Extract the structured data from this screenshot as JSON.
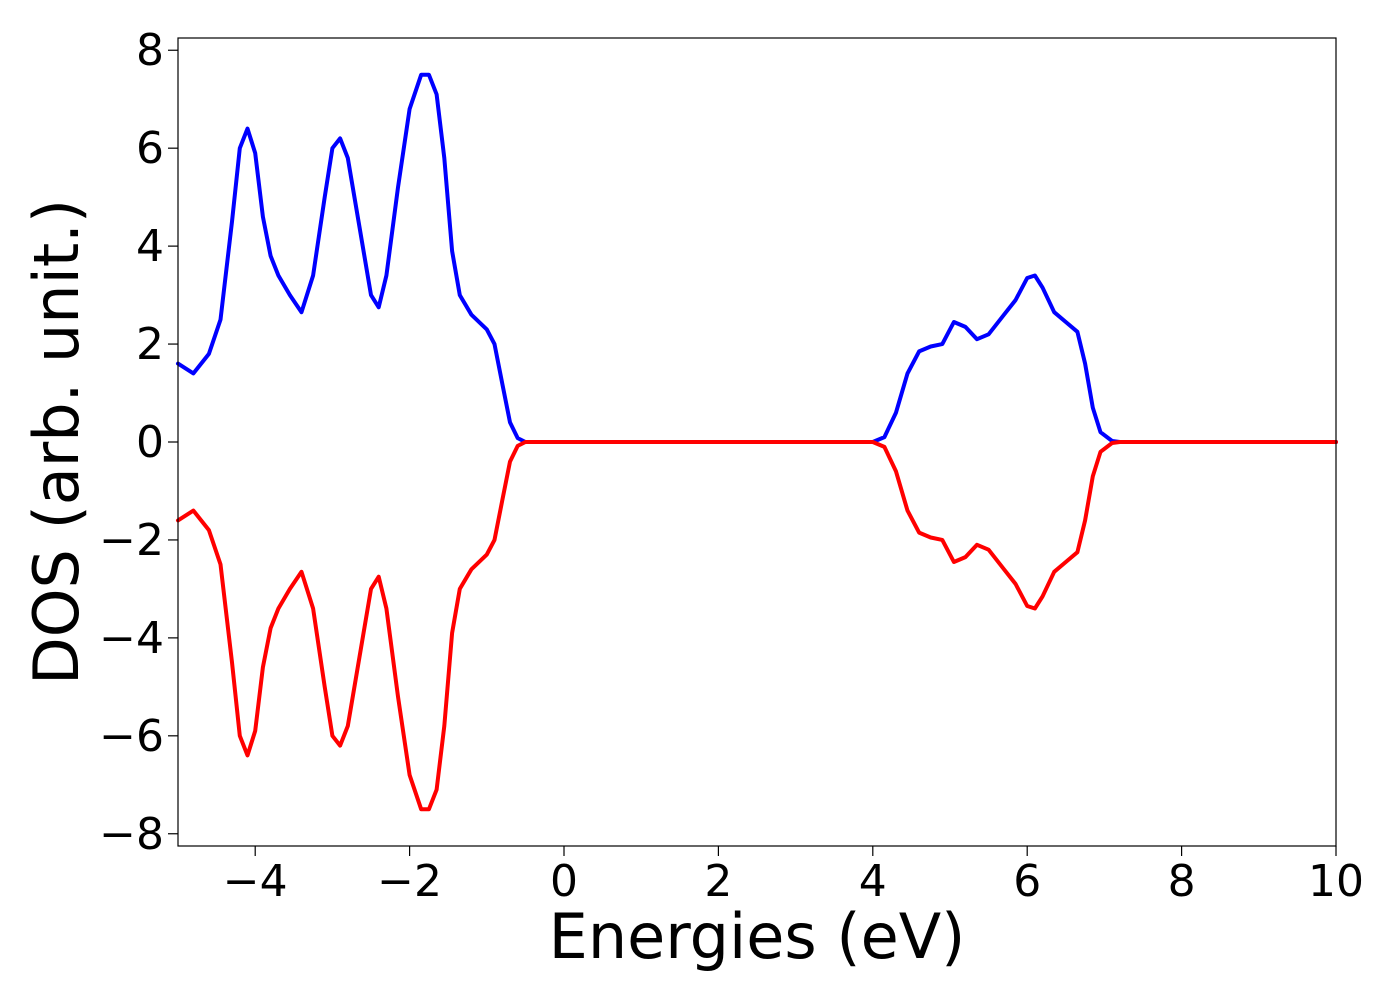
{
  "chart_data": {
    "type": "line",
    "title": "",
    "xlabel": "Energies (eV)",
    "ylabel": "DOS (arb. unit.)",
    "xlim": [
      -5,
      10
    ],
    "ylim": [
      -8.25,
      8.25
    ],
    "grid": false,
    "legend": "none",
    "xticks": [
      {
        "value": -4,
        "label": "−4"
      },
      {
        "value": -2,
        "label": "−2"
      },
      {
        "value": 0,
        "label": "0"
      },
      {
        "value": 2,
        "label": "2"
      },
      {
        "value": 4,
        "label": "4"
      },
      {
        "value": 6,
        "label": "6"
      },
      {
        "value": 8,
        "label": "8"
      },
      {
        "value": 10,
        "label": "10"
      }
    ],
    "yticks": [
      {
        "value": -8,
        "label": "−8"
      },
      {
        "value": -6,
        "label": "−6"
      },
      {
        "value": -4,
        "label": "−4"
      },
      {
        "value": -2,
        "label": "−2"
      },
      {
        "value": 0,
        "label": "0"
      },
      {
        "value": 2,
        "label": "2"
      },
      {
        "value": 4,
        "label": "4"
      },
      {
        "value": 6,
        "label": "6"
      },
      {
        "value": 8,
        "label": "8"
      }
    ],
    "series": [
      {
        "color": "#0000ff",
        "points": [
          [
            -5.0,
            1.6
          ],
          [
            -4.8,
            1.4
          ],
          [
            -4.6,
            1.8
          ],
          [
            -4.45,
            2.5
          ],
          [
            -4.3,
            4.5
          ],
          [
            -4.2,
            6.0
          ],
          [
            -4.1,
            6.4
          ],
          [
            -4.0,
            5.9
          ],
          [
            -3.9,
            4.6
          ],
          [
            -3.8,
            3.8
          ],
          [
            -3.7,
            3.4
          ],
          [
            -3.55,
            3.0
          ],
          [
            -3.4,
            2.65
          ],
          [
            -3.25,
            3.4
          ],
          [
            -3.1,
            5.0
          ],
          [
            -3.0,
            6.0
          ],
          [
            -2.9,
            6.2
          ],
          [
            -2.8,
            5.8
          ],
          [
            -2.65,
            4.4
          ],
          [
            -2.5,
            3.0
          ],
          [
            -2.4,
            2.75
          ],
          [
            -2.3,
            3.4
          ],
          [
            -2.15,
            5.2
          ],
          [
            -2.0,
            6.8
          ],
          [
            -1.85,
            7.5
          ],
          [
            -1.75,
            7.5
          ],
          [
            -1.65,
            7.1
          ],
          [
            -1.55,
            5.8
          ],
          [
            -1.45,
            3.9
          ],
          [
            -1.35,
            3.0
          ],
          [
            -1.2,
            2.6
          ],
          [
            -1.0,
            2.3
          ],
          [
            -0.9,
            2.0
          ],
          [
            -0.8,
            1.2
          ],
          [
            -0.7,
            0.4
          ],
          [
            -0.6,
            0.08
          ],
          [
            -0.5,
            0.0
          ],
          [
            4.0,
            0.0
          ],
          [
            4.15,
            0.1
          ],
          [
            4.3,
            0.6
          ],
          [
            4.45,
            1.4
          ],
          [
            4.6,
            1.85
          ],
          [
            4.75,
            1.95
          ],
          [
            4.9,
            2.0
          ],
          [
            5.05,
            2.45
          ],
          [
            5.2,
            2.35
          ],
          [
            5.35,
            2.1
          ],
          [
            5.5,
            2.2
          ],
          [
            5.7,
            2.6
          ],
          [
            5.85,
            2.9
          ],
          [
            6.0,
            3.35
          ],
          [
            6.1,
            3.4
          ],
          [
            6.2,
            3.15
          ],
          [
            6.35,
            2.65
          ],
          [
            6.5,
            2.45
          ],
          [
            6.65,
            2.25
          ],
          [
            6.75,
            1.6
          ],
          [
            6.85,
            0.7
          ],
          [
            6.95,
            0.2
          ],
          [
            7.1,
            0.02
          ],
          [
            7.2,
            0.0
          ],
          [
            10.0,
            0.0
          ]
        ]
      },
      {
        "color": "#ff0000",
        "points": [
          [
            -5.0,
            -1.6
          ],
          [
            -4.8,
            -1.4
          ],
          [
            -4.6,
            -1.8
          ],
          [
            -4.45,
            -2.5
          ],
          [
            -4.3,
            -4.5
          ],
          [
            -4.2,
            -6.0
          ],
          [
            -4.1,
            -6.4
          ],
          [
            -4.0,
            -5.9
          ],
          [
            -3.9,
            -4.6
          ],
          [
            -3.8,
            -3.8
          ],
          [
            -3.7,
            -3.4
          ],
          [
            -3.55,
            -3.0
          ],
          [
            -3.4,
            -2.65
          ],
          [
            -3.25,
            -3.4
          ],
          [
            -3.1,
            -5.0
          ],
          [
            -3.0,
            -6.0
          ],
          [
            -2.9,
            -6.2
          ],
          [
            -2.8,
            -5.8
          ],
          [
            -2.65,
            -4.4
          ],
          [
            -2.5,
            -3.0
          ],
          [
            -2.4,
            -2.75
          ],
          [
            -2.3,
            -3.4
          ],
          [
            -2.15,
            -5.2
          ],
          [
            -2.0,
            -6.8
          ],
          [
            -1.85,
            -7.5
          ],
          [
            -1.75,
            -7.5
          ],
          [
            -1.65,
            -7.1
          ],
          [
            -1.55,
            -5.8
          ],
          [
            -1.45,
            -3.9
          ],
          [
            -1.35,
            -3.0
          ],
          [
            -1.2,
            -2.6
          ],
          [
            -1.0,
            -2.3
          ],
          [
            -0.9,
            -2.0
          ],
          [
            -0.8,
            -1.2
          ],
          [
            -0.7,
            -0.4
          ],
          [
            -0.6,
            -0.08
          ],
          [
            -0.5,
            0.0
          ],
          [
            4.0,
            0.0
          ],
          [
            4.15,
            -0.1
          ],
          [
            4.3,
            -0.6
          ],
          [
            4.45,
            -1.4
          ],
          [
            4.6,
            -1.85
          ],
          [
            4.75,
            -1.95
          ],
          [
            4.9,
            -2.0
          ],
          [
            5.05,
            -2.45
          ],
          [
            5.2,
            -2.35
          ],
          [
            5.35,
            -2.1
          ],
          [
            5.5,
            -2.2
          ],
          [
            5.7,
            -2.6
          ],
          [
            5.85,
            -2.9
          ],
          [
            6.0,
            -3.35
          ],
          [
            6.1,
            -3.4
          ],
          [
            6.2,
            -3.15
          ],
          [
            6.35,
            -2.65
          ],
          [
            6.5,
            -2.45
          ],
          [
            6.65,
            -2.25
          ],
          [
            6.75,
            -1.6
          ],
          [
            6.85,
            -0.7
          ],
          [
            6.95,
            -0.2
          ],
          [
            7.1,
            -0.02
          ],
          [
            7.2,
            0.0
          ],
          [
            10.0,
            0.0
          ]
        ]
      }
    ]
  }
}
